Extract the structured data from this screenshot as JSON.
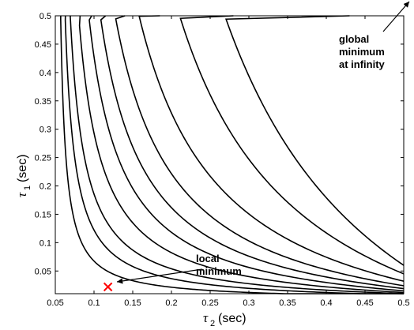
{
  "chart_data": {
    "type": "contour",
    "xlabel": {
      "symbol": "τ",
      "subscript": "2",
      "unit": "(sec)"
    },
    "ylabel": {
      "symbol": "τ",
      "subscript": "1",
      "unit": "(sec)"
    },
    "xlim": [
      0.05,
      0.5
    ],
    "ylim": [
      0.01,
      0.5
    ],
    "xticks": [
      "0.05",
      "0.1",
      "0.15",
      "0.2",
      "0.25",
      "0.3",
      "0.35",
      "0.4",
      "0.45",
      "0.5"
    ],
    "yticks": [
      "0.05",
      "0.1",
      "0.15",
      "0.2",
      "0.25",
      "0.3",
      "0.35",
      "0.4",
      "0.45",
      "0.5"
    ],
    "grid": false,
    "contours": [
      {
        "near_vertical_tau2": 0.057,
        "low_tau1_asymptote": 0.006
      },
      {
        "near_vertical_tau2": 0.063,
        "low_tau1_asymptote": 0.008
      },
      {
        "near_vertical_tau2": 0.07,
        "low_tau1_asymptote": 0.01
      },
      {
        "near_vertical_tau2": 0.082,
        "low_tau1_asymptote": 0.012
      },
      {
        "near_vertical_tau2": 0.097,
        "low_tau1_asymptote": 0.015
      },
      {
        "near_vertical_tau2": 0.115,
        "low_tau1_asymptote": 0.019
      },
      {
        "near_vertical_tau2": 0.14,
        "low_tau1_asymptote": 0.024
      },
      {
        "near_vertical_tau2": 0.185,
        "low_tau1_asymptote": 0.032
      },
      {
        "near_vertical_tau2": 0.28,
        "low_tau1_asymptote": 0.045
      },
      {
        "near_vertical_tau2": 0.43,
        "low_tau1_asymptote": 0.06
      }
    ],
    "local_minimum": {
      "tau2": 0.118,
      "tau1": 0.022,
      "marker": "x",
      "color": "#ff0000"
    },
    "annotations": [
      {
        "lines": [
          "global",
          "minimum",
          "at infinity"
        ]
      },
      {
        "lines": [
          "local",
          "minimum"
        ]
      }
    ]
  }
}
